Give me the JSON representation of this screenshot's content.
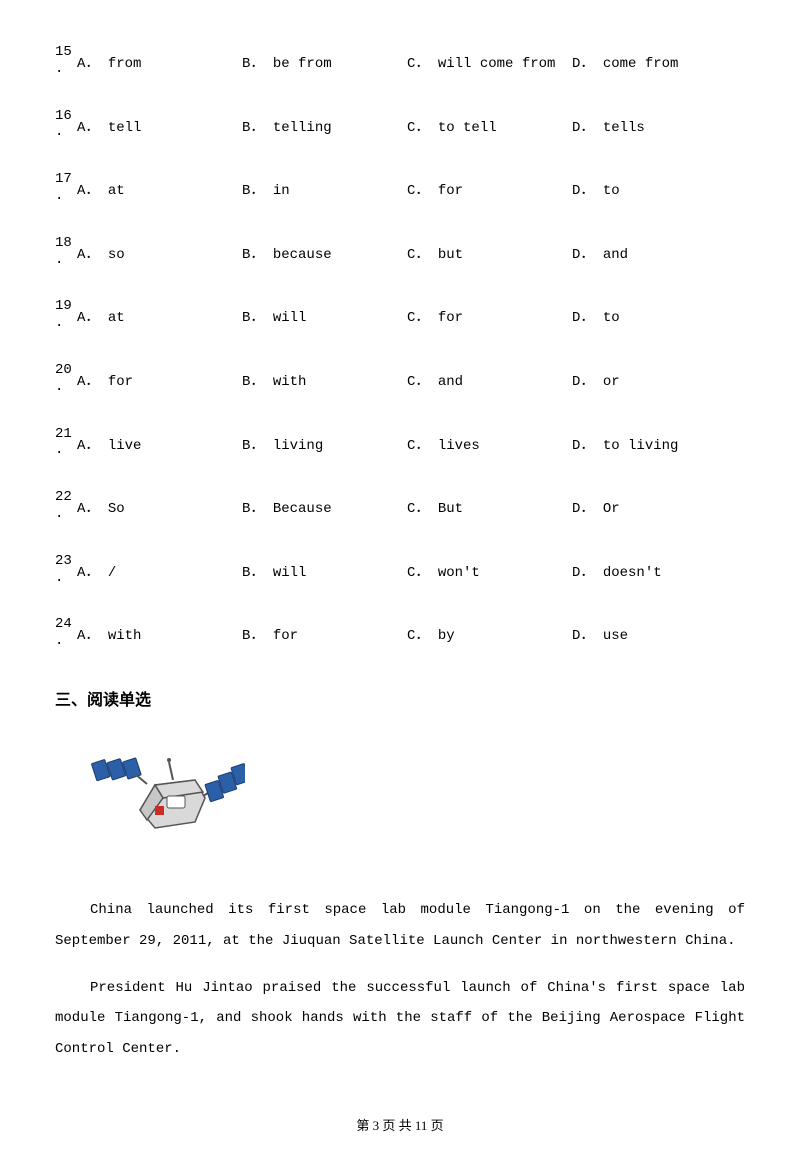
{
  "questions": [
    {
      "num": "15",
      "a": "from",
      "b": "be from",
      "c": "will come from",
      "d": "come from"
    },
    {
      "num": "16",
      "a": "tell",
      "b": "telling",
      "c": "to tell",
      "d": "tells"
    },
    {
      "num": "17",
      "a": "at",
      "b": "in",
      "c": "for",
      "d": "to"
    },
    {
      "num": "18",
      "a": "so",
      "b": "because",
      "c": "but",
      "d": "and"
    },
    {
      "num": "19",
      "a": "at",
      "b": "will",
      "c": "for",
      "d": "to"
    },
    {
      "num": "20",
      "a": "for",
      "b": "with",
      "c": "and",
      "d": "or"
    },
    {
      "num": "21",
      "a": "live",
      "b": "living",
      "c": "lives",
      "d": "to living"
    },
    {
      "num": "22",
      "a": "So",
      "b": "Because",
      "c": "But",
      "d": "Or"
    },
    {
      "num": "23",
      "a": "/",
      "b": "will",
      "c": "won't",
      "d": "doesn't"
    },
    {
      "num": "24",
      "a": "with",
      "b": "for",
      "c": "by",
      "d": "use"
    }
  ],
  "option_letters": {
    "a": "A",
    "b": "B",
    "c": "C",
    "d": "D"
  },
  "option_punct": "．",
  "section_heading": "三、阅读单选",
  "paragraphs": [
    "China launched its first space lab module Tiangong-1 on the evening of September 29, 2011, at the Jiuquan Satellite Launch Center in northwestern China.",
    "President Hu Jintao praised the successful launch of China's first space lab module Tiangong-1, and shook hands with the staff of the Beijing Aerospace Flight Control Center."
  ],
  "footer": "第 3 页 共 11 页",
  "illustration": {
    "body_fill": "#d9d9d9",
    "body_stroke": "#555555",
    "panel_fill": "#2b5fa8",
    "panel_stroke": "#1d3f6e",
    "window_fill": "#ffffff",
    "accent_fill": "#cc2b2b",
    "width": 160,
    "height": 110
  }
}
